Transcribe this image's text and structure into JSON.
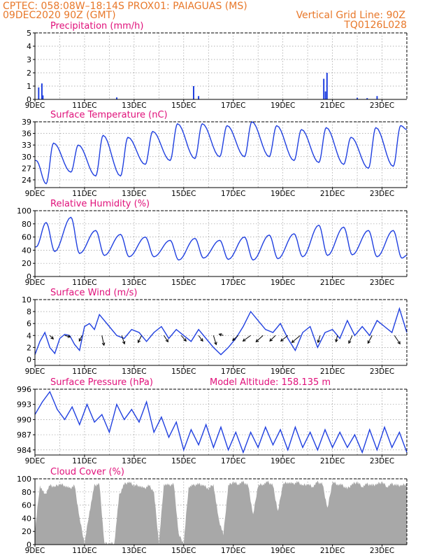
{
  "header": {
    "line1_left": "CPTEC:   058:08W–18:14S   PROX01: PAIAGUAS (MS)",
    "line2_left": "09DEC2020 90Z (GMT)",
    "line2_right": "Vertical Grid Line: 90Z",
    "line3_right": "TQ0126L028"
  },
  "colors": {
    "header": "#e8782a",
    "title": "#e0107a",
    "series": "#2040e0",
    "arrows": "#000000",
    "cloud": "#a8a8a8",
    "grid": "#9a9a9a"
  },
  "x_axis": {
    "ticks": [
      {
        "day": 9,
        "label": "9DEC"
      },
      {
        "day": 11,
        "label": "11DEC"
      },
      {
        "day": 13,
        "label": "13DEC"
      },
      {
        "day": 15,
        "label": "15DEC"
      },
      {
        "day": 17,
        "label": "17DEC"
      },
      {
        "day": 19,
        "label": "19DEC"
      },
      {
        "day": 21,
        "label": "21DEC"
      },
      {
        "day": 23,
        "label": "23DEC"
      }
    ],
    "range_days": [
      9,
      24
    ]
  },
  "chart_data": [
    {
      "type": "bar",
      "title": "Precipitation (mm/h)",
      "ylim": [
        0,
        5
      ],
      "yticks": [
        0,
        1,
        2,
        3,
        4,
        5
      ],
      "grid": true,
      "points": [
        {
          "day": 9.15,
          "value": 0.9
        },
        {
          "day": 9.28,
          "value": 1.2
        },
        {
          "day": 9.32,
          "value": 0.3
        },
        {
          "day": 12.3,
          "value": 0.15
        },
        {
          "day": 15.4,
          "value": 1.0
        },
        {
          "day": 15.6,
          "value": 0.25
        },
        {
          "day": 20.65,
          "value": 1.55
        },
        {
          "day": 20.72,
          "value": 0.6
        },
        {
          "day": 20.78,
          "value": 2.0
        },
        {
          "day": 22.0,
          "value": 0.12
        },
        {
          "day": 22.4,
          "value": 0.1
        },
        {
          "day": 22.8,
          "value": 0.25
        }
      ]
    },
    {
      "type": "line",
      "title": "Surface Temperature (nC)",
      "ylim": [
        22,
        39
      ],
      "yticks": [
        24,
        27,
        30,
        33,
        36,
        39
      ],
      "grid": true,
      "max_times": [
        9.05,
        9.75,
        10.75,
        11.75,
        12.75,
        13.75,
        14.75,
        15.75,
        16.75,
        17.75,
        18.75,
        19.75,
        20.75,
        21.75,
        22.75,
        23.75
      ],
      "max_values": [
        29,
        33.5,
        33,
        35.5,
        35,
        36.5,
        38.5,
        38.5,
        38,
        39,
        38,
        37,
        37.5,
        35,
        37.5,
        38
      ],
      "min_times": [
        9.45,
        10.45,
        11.45,
        12.45,
        13.45,
        14.45,
        15.45,
        16.45,
        17.45,
        18.45,
        19.45,
        20.45,
        21.45,
        22.45,
        23.45
      ],
      "min_values": [
        23,
        26,
        25,
        25,
        28,
        29,
        29.5,
        30,
        30,
        30,
        29,
        28.5,
        28,
        27,
        27.5
      ],
      "end_value": 37
    },
    {
      "type": "line",
      "title": "Relative Humidity (%)",
      "ylim": [
        0,
        100
      ],
      "yticks": [
        0,
        20,
        40,
        60,
        80,
        100
      ],
      "grid": true,
      "max_times": [
        9.45,
        10.45,
        11.45,
        12.45,
        13.45,
        14.45,
        15.45,
        16.45,
        17.45,
        18.45,
        19.45,
        20.45,
        21.45,
        22.45,
        23.45
      ],
      "max_values": [
        82,
        90,
        70,
        64,
        60,
        55,
        58,
        55,
        60,
        63,
        65,
        78,
        75,
        70,
        70
      ],
      "min_times": [
        9.05,
        9.8,
        10.8,
        11.8,
        12.8,
        13.8,
        14.8,
        15.8,
        16.8,
        17.8,
        18.8,
        19.8,
        20.8,
        21.8,
        22.8,
        23.8
      ],
      "min_values": [
        45,
        38,
        35,
        32,
        30,
        30,
        25,
        28,
        26,
        25,
        27,
        30,
        32,
        33,
        30,
        28
      ],
      "end_value": 32
    },
    {
      "type": "line",
      "title": "Surface Wind (m/s)",
      "ylim": [
        -1,
        10
      ],
      "yticks": [
        0,
        2,
        4,
        6,
        8,
        10
      ],
      "grid": true,
      "x": [
        9.0,
        9.2,
        9.4,
        9.6,
        9.8,
        10.0,
        10.2,
        10.4,
        10.6,
        10.8,
        11.0,
        11.2,
        11.4,
        11.6,
        11.8,
        12.0,
        12.3,
        12.6,
        12.9,
        13.2,
        13.5,
        13.8,
        14.1,
        14.4,
        14.7,
        15.0,
        15.3,
        15.6,
        15.9,
        16.2,
        16.5,
        16.8,
        17.1,
        17.4,
        17.7,
        18.0,
        18.3,
        18.6,
        18.9,
        19.2,
        19.5,
        19.8,
        20.1,
        20.4,
        20.7,
        21.0,
        21.3,
        21.6,
        21.9,
        22.2,
        22.5,
        22.8,
        23.1,
        23.4,
        23.7,
        24.0
      ],
      "y": [
        0.8,
        3.0,
        4.5,
        2.0,
        1.0,
        3.5,
        4.2,
        4.0,
        2.5,
        1.5,
        5.5,
        6.0,
        5.0,
        7.5,
        6.5,
        5.5,
        4.0,
        3.5,
        5.0,
        4.5,
        3.0,
        4.5,
        5.5,
        3.5,
        5.0,
        4.0,
        3.0,
        5.0,
        3.5,
        2.0,
        0.8,
        2.0,
        3.5,
        5.5,
        8.0,
        6.5,
        5.0,
        4.5,
        6.0,
        3.5,
        1.5,
        4.5,
        5.5,
        2.0,
        4.5,
        5.0,
        3.5,
        6.5,
        4.0,
        5.5,
        4.0,
        6.5,
        5.5,
        4.5,
        8.5,
        4.5
      ],
      "arrows": [
        {
          "day": 9.6,
          "dx": 5,
          "dy": -5
        },
        {
          "day": 10.2,
          "dx": 8,
          "dy": -2
        },
        {
          "day": 10.9,
          "dx": -4,
          "dy": -8
        },
        {
          "day": 11.7,
          "dx": 3,
          "dy": -14
        },
        {
          "day": 12.5,
          "dx": 4,
          "dy": -12
        },
        {
          "day": 13.3,
          "dx": -5,
          "dy": -10
        },
        {
          "day": 14.2,
          "dx": 6,
          "dy": -9
        },
        {
          "day": 14.9,
          "dx": 7,
          "dy": -8
        },
        {
          "day": 15.6,
          "dx": 6,
          "dy": -8
        },
        {
          "day": 16.2,
          "dx": 4,
          "dy": -13
        },
        {
          "day": 16.6,
          "dx": -6,
          "dy": 2
        },
        {
          "day": 17.2,
          "dx": -8,
          "dy": -7
        },
        {
          "day": 17.7,
          "dx": -11,
          "dy": -8
        },
        {
          "day": 18.2,
          "dx": -10,
          "dy": -9
        },
        {
          "day": 18.7,
          "dx": -8,
          "dy": -8
        },
        {
          "day": 19.2,
          "dx": -10,
          "dy": -8
        },
        {
          "day": 19.7,
          "dx": -12,
          "dy": -10
        },
        {
          "day": 20.5,
          "dx": -3,
          "dy": -10
        },
        {
          "day": 21.2,
          "dx": -2,
          "dy": -9
        },
        {
          "day": 21.8,
          "dx": -5,
          "dy": -11
        },
        {
          "day": 22.6,
          "dx": -6,
          "dy": -11
        },
        {
          "day": 23.5,
          "dx": 8,
          "dy": -12
        }
      ]
    },
    {
      "type": "line",
      "title": "Surface Pressure (hPa)",
      "annotation": "Model Altitude: 158.135 m",
      "ylim": [
        983,
        996
      ],
      "yticks": [
        984,
        987,
        990,
        993,
        996
      ],
      "grid": true,
      "x": [
        9.0,
        9.3,
        9.6,
        9.9,
        10.2,
        10.5,
        10.8,
        11.1,
        11.4,
        11.7,
        12.0,
        12.3,
        12.6,
        12.9,
        13.2,
        13.5,
        13.8,
        14.1,
        14.4,
        14.7,
        15.0,
        15.3,
        15.6,
        15.9,
        16.2,
        16.5,
        16.8,
        17.1,
        17.4,
        17.7,
        18.0,
        18.3,
        18.6,
        18.9,
        19.2,
        19.5,
        19.8,
        20.1,
        20.4,
        20.7,
        21.0,
        21.3,
        21.6,
        21.9,
        22.2,
        22.5,
        22.8,
        23.1,
        23.4,
        23.7,
        24.0
      ],
      "y": [
        991,
        993.5,
        995.5,
        992,
        990,
        992.5,
        989,
        993,
        989.5,
        991,
        987.5,
        993,
        990,
        992,
        989.5,
        993.5,
        987.5,
        990.5,
        986.5,
        989.5,
        984,
        988,
        985,
        989,
        984.5,
        988.5,
        984,
        987.5,
        983.5,
        987.5,
        984.5,
        988.5,
        985,
        988,
        984,
        988.5,
        984.5,
        987.5,
        984,
        988,
        984.5,
        987.5,
        984.5,
        987,
        983.5,
        988,
        984,
        988.5,
        984.5,
        987.5,
        983.5
      ]
    },
    {
      "type": "area",
      "title": "Cloud Cover (%)",
      "ylim": [
        0,
        100
      ],
      "yticks": [
        0,
        20,
        40,
        60,
        80,
        100
      ],
      "grid": true,
      "x": [
        9.0,
        9.2,
        9.4,
        9.6,
        9.8,
        10.0,
        10.2,
        10.4,
        10.6,
        10.8,
        11.0,
        11.2,
        11.4,
        11.6,
        11.8,
        12.0,
        12.2,
        12.4,
        12.6,
        12.8,
        13.0,
        13.2,
        13.4,
        13.6,
        13.8,
        14.0,
        14.2,
        14.4,
        14.6,
        14.8,
        15.0,
        15.2,
        15.4,
        15.6,
        15.8,
        16.0,
        16.2,
        16.4,
        16.6,
        16.8,
        17.0,
        17.2,
        17.4,
        17.6,
        17.8,
        18.0,
        18.2,
        18.4,
        18.6,
        18.8,
        19.0,
        19.2,
        19.4,
        19.6,
        19.8,
        20.0,
        20.2,
        20.4,
        20.6,
        20.8,
        21.0,
        21.2,
        21.4,
        21.6,
        21.8,
        22.0,
        22.2,
        22.4,
        22.6,
        22.8,
        23.0,
        23.2,
        23.4,
        23.6,
        23.8,
        24.0
      ],
      "y": [
        20,
        90,
        75,
        90,
        88,
        92,
        90,
        85,
        90,
        40,
        2,
        50,
        90,
        92,
        2,
        2,
        2,
        75,
        92,
        95,
        90,
        90,
        85,
        90,
        80,
        2,
        92,
        90,
        92,
        15,
        2,
        88,
        90,
        92,
        90,
        85,
        92,
        40,
        15,
        90,
        95,
        92,
        95,
        90,
        45,
        90,
        92,
        95,
        90,
        50,
        92,
        95,
        92,
        95,
        90,
        92,
        88,
        95,
        92,
        55,
        95,
        92,
        90,
        85,
        92,
        95,
        88,
        92,
        90,
        92,
        95,
        88,
        92,
        90,
        90,
        92
      ]
    }
  ]
}
